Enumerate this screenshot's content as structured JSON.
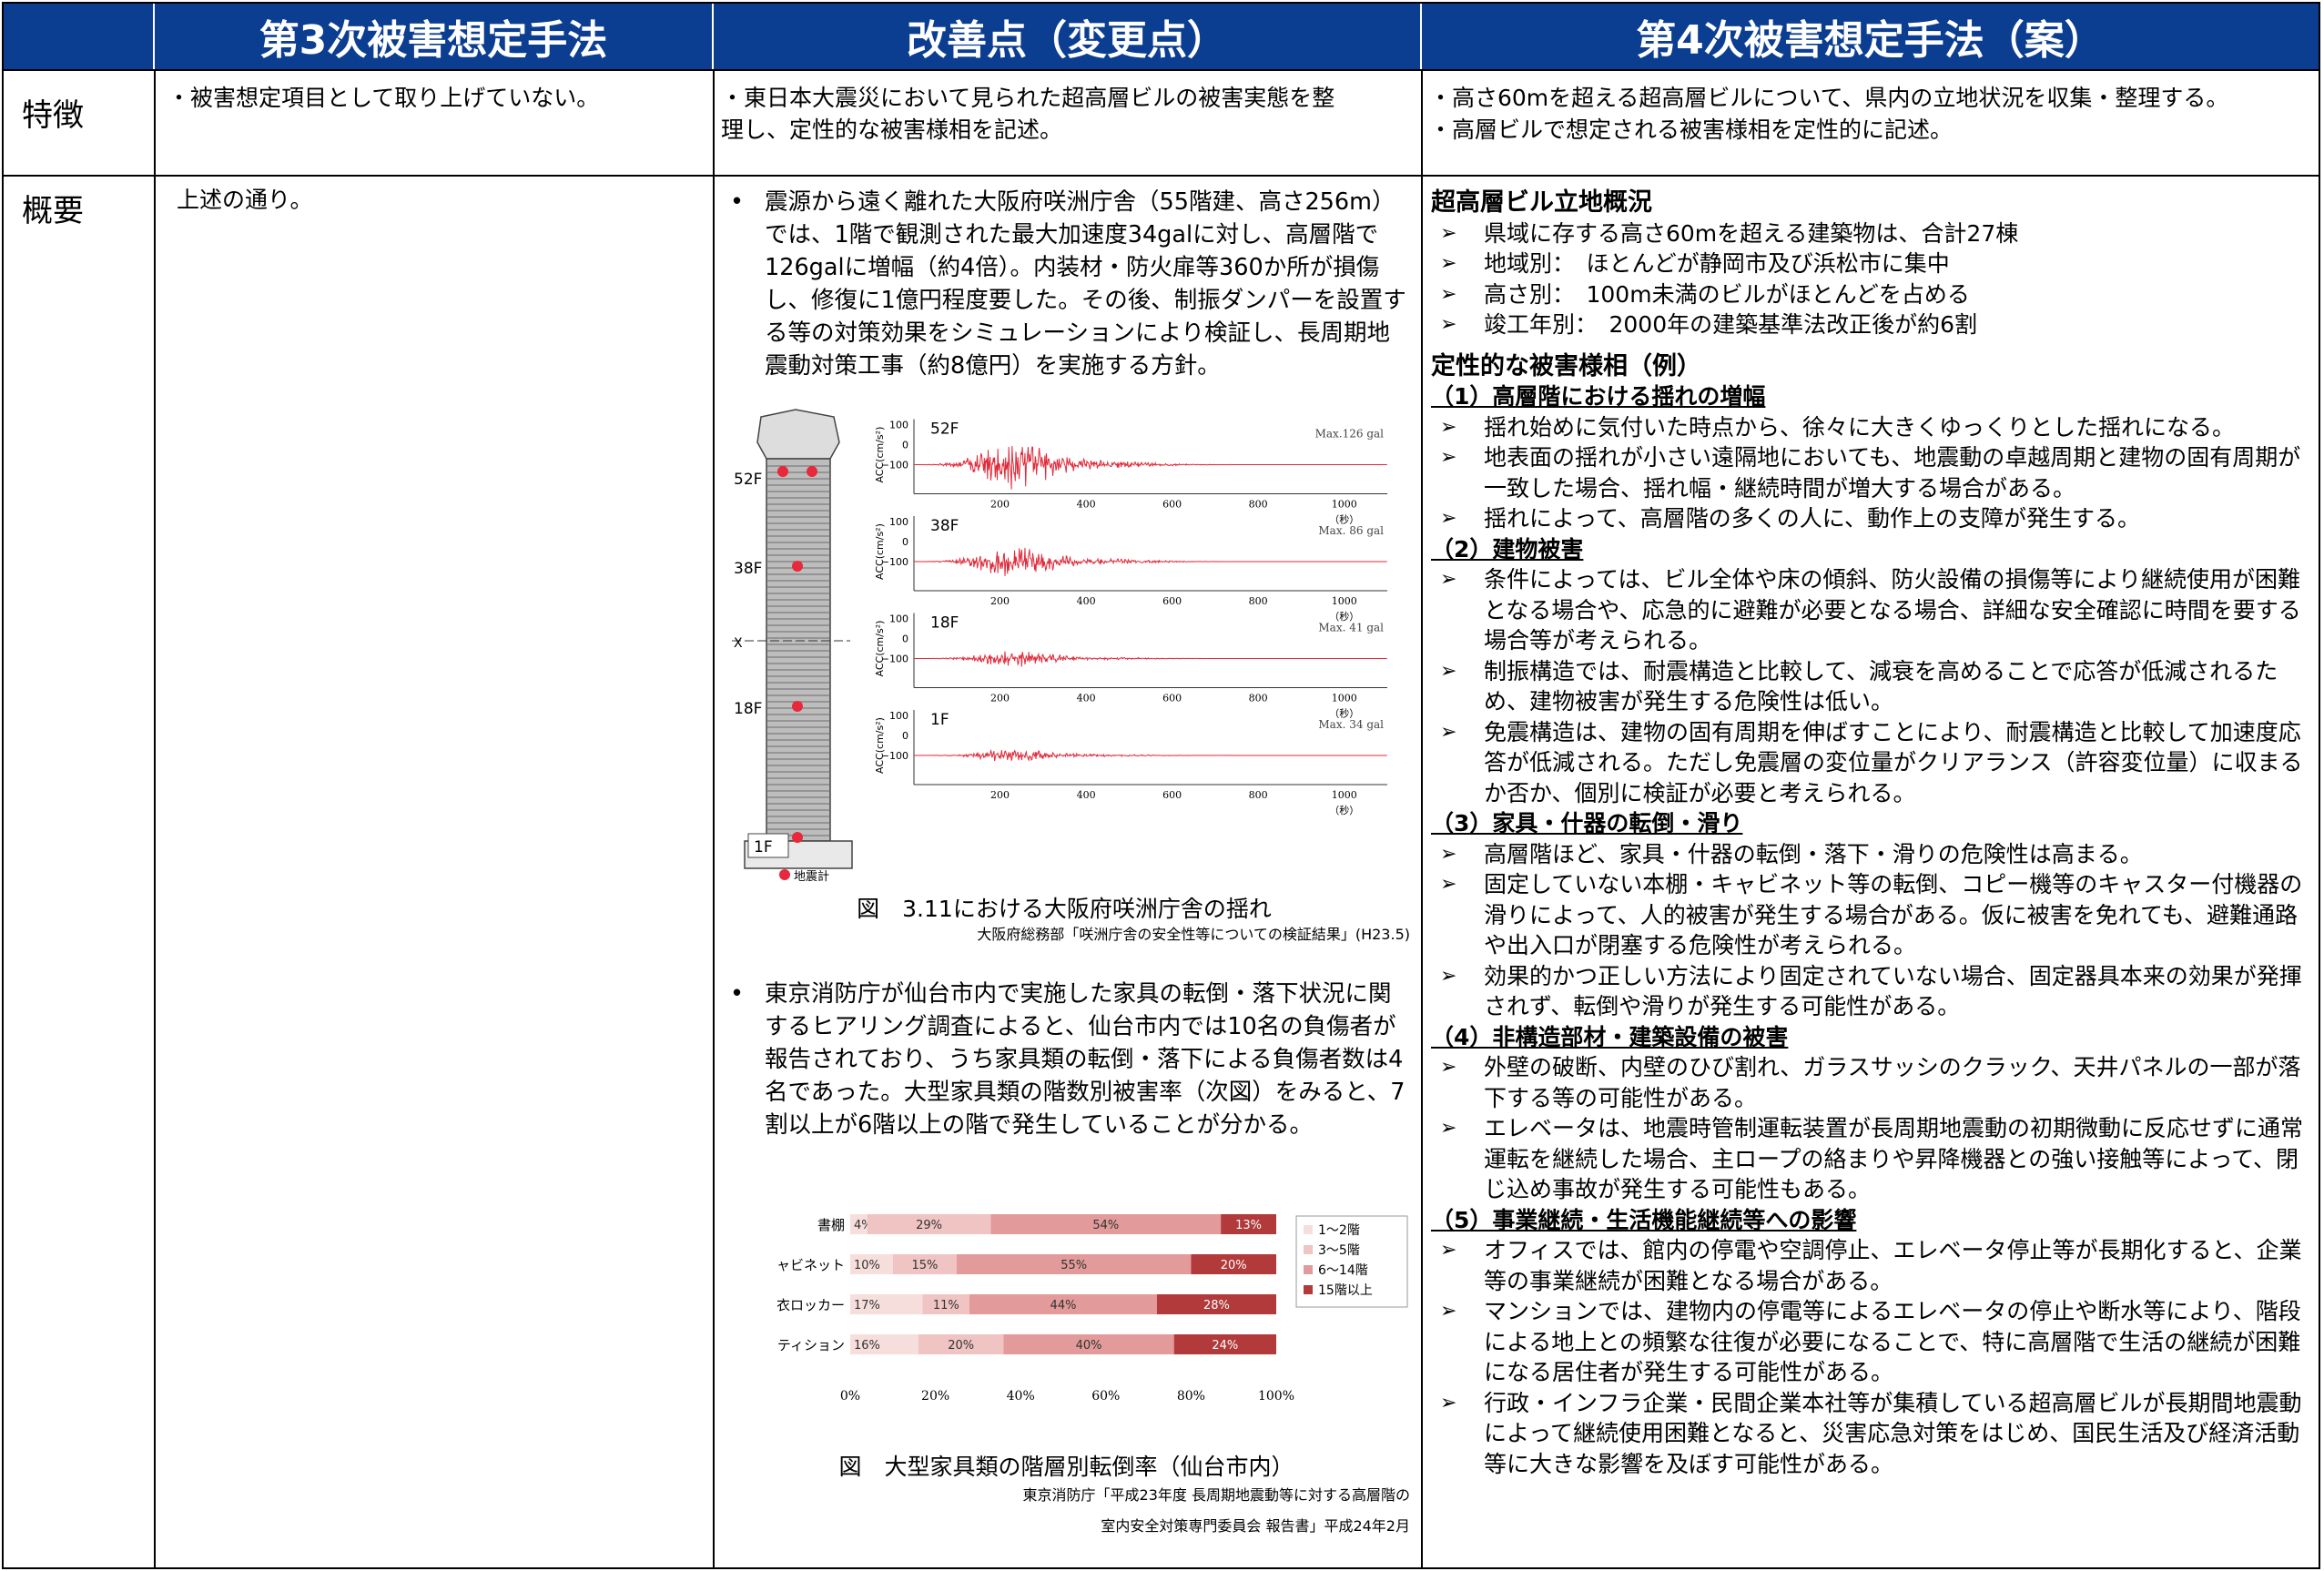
{
  "headers": {
    "col1": "第3次被害想定手法",
    "col2": "改善点（変更点）",
    "col3": "第4次被害想定手法（案）"
  },
  "rows": {
    "r1_label": "特徴",
    "r2_label": "概要"
  },
  "col1": {
    "r1_text": "・被害想定項目として取り上げていない。",
    "r2_text": "上述の通り。"
  },
  "col2": {
    "r1_line1": "・東日本大震災において見られた超高層ビルの被害実態を整",
    "r1_line2": "理し、定性的な被害様相を記述。",
    "bullet1": "震源から遠く離れた大阪府咲洲庁舎（55階建、高さ256m）では、1階で観測された最大加速度34galに対し、高層階で126galに増幅（約4倍）。内装材・防火扉等360か所が損傷し、修復に1億円程度要した。その後、制振ダンパーを設置する等の対策効果をシミュレーションにより検証し、長周期地震動対策工事（約8億円）を実施する方針。",
    "fig1_caption": "図　3.11における大阪府咲洲庁舎の揺れ",
    "fig1_source": "大阪府総務部「咲洲庁舎の安全性等についての検証結果」(H23.5)",
    "bullet2": "東京消防庁が仙台市内で実施した家具の転倒・落下状況に関するヒアリング調査によると、仙台市内では10名の負傷者が報告されており、うち家具類の転倒・落下による負傷者数は4名であった。大型家具類の階数別被害率（次図）をみると、7割以上が6階以上の階で発生していることが分かる。",
    "fig2_caption": "図　大型家具類の階層別転倒率（仙台市内）",
    "fig2_source1": "東京消防庁「平成23年度 長周期地震動等に対する高層階の",
    "fig2_source2": "室内安全対策専門委員会 報告書」平成24年2月"
  },
  "seismo": {
    "floors": [
      "52F",
      "38F",
      "18F",
      "1F"
    ],
    "maxes": [
      "Max.126 gal",
      "Max. 86 gal",
      "Max. 41 gal",
      "Max. 34 gal"
    ],
    "amplitudes": [
      126,
      86,
      41,
      34
    ],
    "ylabel": "ACC(cm/s²)",
    "yticks": [
      "100",
      "0",
      "−100"
    ],
    "xticks": [
      "200",
      "400",
      "600",
      "800",
      "1000"
    ],
    "xunit": "（秒）",
    "x_label": "X",
    "sensor_label": "地震計"
  },
  "chart_data": {
    "type": "bar",
    "stacked": true,
    "orientation": "horizontal",
    "categories": [
      "書棚",
      "キャビネット",
      "更衣ロッカー",
      "パーティション"
    ],
    "series": [
      {
        "name": "1〜2階",
        "values": [
          4,
          10,
          17,
          16
        ],
        "color": "#f6dedd"
      },
      {
        "name": "3〜5階",
        "values": [
          29,
          15,
          11,
          20
        ],
        "color": "#efc4c3"
      },
      {
        "name": "6〜14階",
        "values": [
          54,
          55,
          44,
          40
        ],
        "color": "#e29a9a"
      },
      {
        "name": "15階以上",
        "values": [
          13,
          20,
          28,
          24
        ],
        "color": "#b23a3a"
      }
    ],
    "labels": [
      [
        "4%",
        "29%",
        "54%",
        "13%"
      ],
      [
        "10%",
        "15%",
        "55%",
        "20%"
      ],
      [
        "17%",
        "11%",
        "44%",
        "28%"
      ],
      [
        "16%",
        "20%",
        "40%",
        "24%"
      ]
    ],
    "xticks": [
      "0%",
      "20%",
      "40%",
      "60%",
      "80%",
      "100%"
    ],
    "xlim": [
      0,
      100
    ],
    "legend": "right"
  },
  "col3": {
    "r1_line1": "・高さ60mを超える超高層ビルについて、県内の立地状況を収集・整理する。",
    "r1_line2": "・高層ビルで想定される被害様相を定性的に記述。",
    "h1": "超高層ビル立地概況",
    "h1_items": [
      "県域に存する高さ60mを超える建築物は、合計27棟",
      "地域別：　ほとんどが静岡市及び浜松市に集中",
      "高さ別：　100m未満のビルがほとんどを占める",
      "竣工年別：　2000年の建築基準法改正後が約6割"
    ],
    "h2": "定性的な被害様相（例）",
    "s1": "（1）高層階における揺れの増幅",
    "s1_items": [
      "揺れ始めに気付いた時点から、徐々に大きくゆっくりとした揺れになる。",
      "地表面の揺れが小さい遠隔地においても、地震動の卓越周期と建物の固有周期が一致した場合、揺れ幅・継続時間が増大する場合がある。",
      "揺れによって、高層階の多くの人に、動作上の支障が発生する。"
    ],
    "s2": "（2）建物被害",
    "s2_items": [
      "条件によっては、ビル全体や床の傾斜、防火設備の損傷等により継続使用が困難となる場合や、応急的に避難が必要となる場合、詳細な安全確認に時間を要する場合等が考えられる。",
      "制振構造では、耐震構造と比較して、減衰を高めることで応答が低減されるため、建物被害が発生する危険性は低い。",
      "免震構造は、建物の固有周期を伸ばすことにより、耐震構造と比較して加速度応答が低減される。ただし免震層の変位量がクリアランス（許容変位量）に収まるか否か、個別に検証が必要と考えられる。"
    ],
    "s3": "（3）家具・什器の転倒・滑り",
    "s3_items": [
      "高層階ほど、家具・什器の転倒・落下・滑りの危険性は高まる。",
      "固定していない本棚・キャビネット等の転倒、コピー機等のキャスター付機器の滑りによって、人的被害が発生する場合がある。仮に被害を免れても、避難通路や出入口が閉塞する危険性が考えられる。",
      "効果的かつ正しい方法により固定されていない場合、固定器具本来の効果が発揮されず、転倒や滑りが発生する可能性がある。"
    ],
    "s4": "（4）非構造部材・建築設備の被害",
    "s4_items": [
      "外壁の破断、内壁のひび割れ、ガラスサッシのクラック、天井パネルの一部が落下する等の可能性がある。",
      "エレベータは、地震時管制運転装置が長周期地震動の初期微動に反応せずに通常運転を継続した場合、主ロープの絡まりや昇降機器との強い接触等によって、閉じ込め事故が発生する可能性もある。"
    ],
    "s5": "（5）事業継続・生活機能継続等への影響",
    "s5_items": [
      "オフィスでは、館内の停電や空調停止、エレベータ停止等が長期化すると、企業等の事業継続が困難となる場合がある。",
      "マンションでは、建物内の停電等によるエレベータの停止や断水等により、階段による地上との頻繁な往復が必要になることで、特に高層階で生活の継続が困難になる居住者が発生する可能性がある。",
      "行政・インフラ企業・民間企業本社等が集積している超高層ビルが長期間地震動によって継続使用困難となると、災害応急対策をはじめ、国民生活及び経済活動等に大きな影響を及ぼす可能性がある。"
    ]
  }
}
